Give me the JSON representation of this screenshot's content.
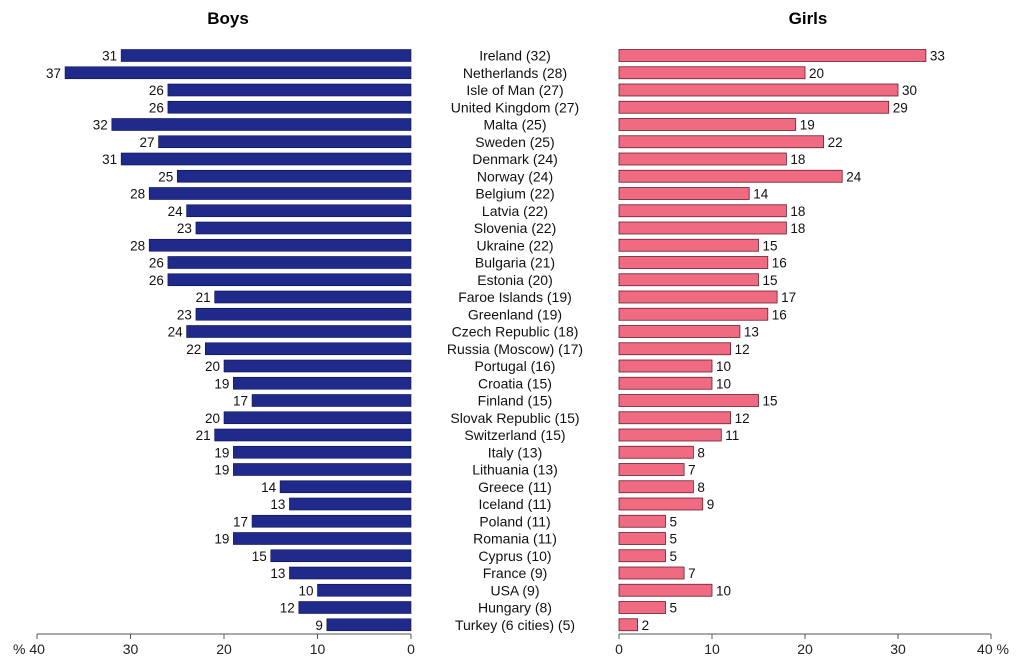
{
  "chart_data": {
    "type": "bar",
    "orientation": "horizontal",
    "layout": "back-to-back",
    "panels": [
      {
        "name": "Boys",
        "title": "Boys",
        "side": "left"
      },
      {
        "name": "Girls",
        "title": "Girls",
        "side": "right"
      }
    ],
    "categories": [
      "Ireland (32)",
      "Netherlands (28)",
      "Isle of Man (27)",
      "United Kingdom (27)",
      "Malta (25)",
      "Sweden (25)",
      "Denmark (24)",
      "Norway (24)",
      "Belgium (22)",
      "Latvia (22)",
      "Slovenia (22)",
      "Ukraine (22)",
      "Bulgaria (21)",
      "Estonia (20)",
      "Faroe Islands (19)",
      "Greenland (19)",
      "Czech Republic (18)",
      "Russia (Moscow) (17)",
      "Portugal (16)",
      "Croatia (15)",
      "Finland (15)",
      "Slovak Republic (15)",
      "Switzerland (15)",
      "Italy (13)",
      "Lithuania (13)",
      "Greece (11)",
      "Iceland (11)",
      "Poland (11)",
      "Romania (11)",
      "Cyprus (10)",
      "France (9)",
      "USA (9)",
      "Hungary (8)",
      "Turkey (6 cities) (5)"
    ],
    "highlight": {
      "USA (9)": "#e8402a",
      "Turkey (6 cities) (5)": "#3a2a9a"
    },
    "series": [
      {
        "name": "Boys",
        "color": "#1f2a8a",
        "values": [
          31,
          37,
          26,
          26,
          32,
          27,
          31,
          25,
          28,
          24,
          23,
          28,
          26,
          26,
          21,
          23,
          24,
          22,
          20,
          19,
          17,
          20,
          21,
          19,
          19,
          14,
          13,
          17,
          19,
          15,
          13,
          10,
          12,
          9
        ]
      },
      {
        "name": "Girls",
        "color": "#f06a82",
        "values": [
          33,
          20,
          30,
          29,
          19,
          22,
          18,
          24,
          14,
          18,
          18,
          15,
          16,
          15,
          17,
          16,
          13,
          12,
          10,
          10,
          15,
          12,
          11,
          8,
          7,
          8,
          9,
          5,
          5,
          5,
          7,
          10,
          5,
          2
        ]
      }
    ],
    "xlim": [
      0,
      40
    ],
    "xticks": [
      0,
      10,
      20,
      30,
      40
    ],
    "x_tick_labels_left": [
      "% 40",
      "30",
      "20",
      "10",
      "0"
    ],
    "x_tick_labels_right": [
      "0",
      "10",
      "20",
      "30",
      "40 %"
    ],
    "data_labels": true,
    "grid": false,
    "legend": "none"
  }
}
